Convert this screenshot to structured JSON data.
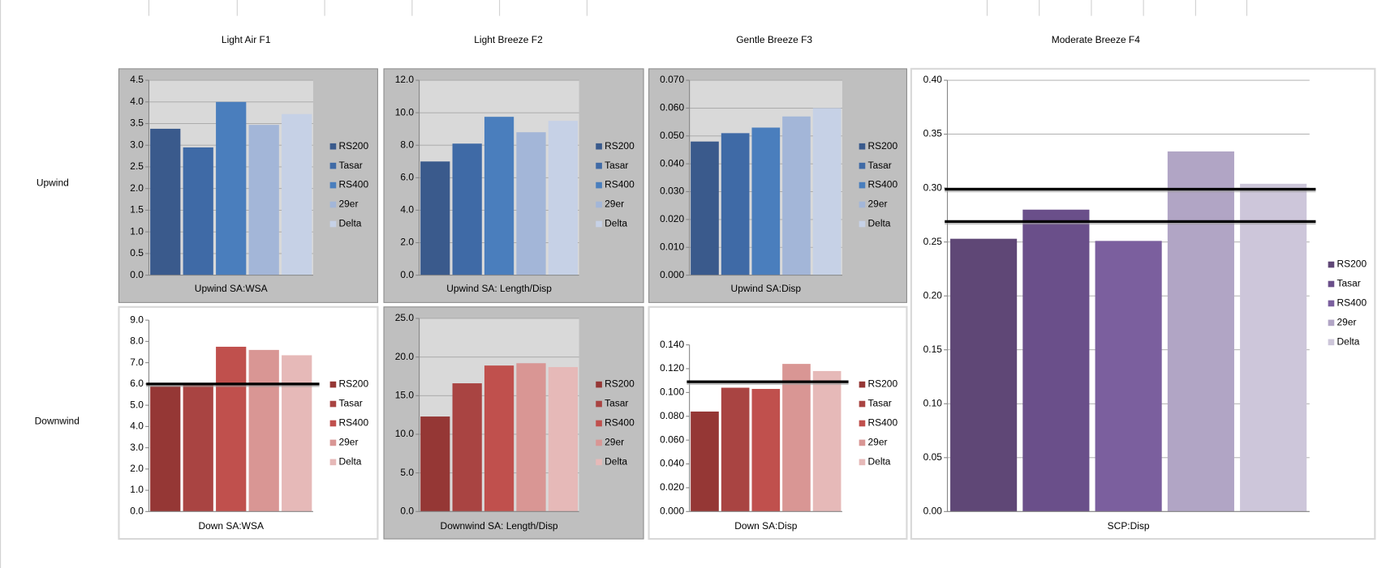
{
  "headers": [
    "Light Air F1",
    "Light Breeze F2",
    "Gentle Breeze F3",
    "Moderate Breeze F4"
  ],
  "rows": [
    "Upwind",
    "Downwind"
  ],
  "chart_data": [
    {
      "type": "bar",
      "x_label": "Upwind SA:WSA",
      "grid": true,
      "ylim": [
        0,
        4.5
      ],
      "yticks": [
        {
          "value": 0,
          "label": "0.0"
        },
        0.5,
        {
          "value": 1,
          "label": "1.0"
        },
        1.5,
        {
          "value": 2,
          "label": "2.0"
        },
        2.5,
        {
          "value": 3,
          "label": "3.0"
        },
        3.5,
        {
          "value": 4,
          "label": "4.0"
        },
        4.5
      ],
      "series": [
        {
          "name": "RS200",
          "color": "#3a5a8c",
          "values": [
            3.38
          ]
        },
        {
          "name": "Tasar",
          "color": "#3f6aa6",
          "values": [
            2.95
          ]
        },
        {
          "name": "RS400",
          "color": "#4a7ebd",
          "values": [
            4.0
          ]
        },
        {
          "name": "29er",
          "color": "#a3b6d8",
          "values": [
            3.47
          ]
        },
        {
          "name": "Delta",
          "color": "#c6d1e6",
          "values": [
            3.72
          ]
        }
      ]
    },
    {
      "type": "bar",
      "x_label": "Upwind SA: Length/Disp",
      "grid": true,
      "ylim": [
        0,
        12
      ],
      "yticks": [
        {
          "value": 0,
          "label": "0.0"
        },
        {
          "value": 2,
          "label": "2.0"
        },
        {
          "value": 4,
          "label": "4.0"
        },
        {
          "value": 6,
          "label": "6.0"
        },
        {
          "value": 8,
          "label": "8.0"
        },
        {
          "value": 10,
          "label": "10.0"
        },
        {
          "value": 12,
          "label": "12.0"
        }
      ],
      "series": [
        {
          "name": "RS200",
          "color": "#3a5a8c",
          "values": [
            7.0
          ]
        },
        {
          "name": "Tasar",
          "color": "#3f6aa6",
          "values": [
            8.1
          ]
        },
        {
          "name": "RS400",
          "color": "#4a7ebd",
          "values": [
            9.75
          ]
        },
        {
          "name": "29er",
          "color": "#a3b6d8",
          "values": [
            8.8
          ]
        },
        {
          "name": "Delta",
          "color": "#c6d1e6",
          "values": [
            9.5
          ]
        }
      ]
    },
    {
      "type": "bar",
      "x_label": "Upwind SA:Disp",
      "grid": true,
      "ylim": [
        0,
        0.07
      ],
      "yticks": [
        {
          "value": 0,
          "label": "0.000"
        },
        {
          "value": 0.01,
          "label": "0.010"
        },
        {
          "value": 0.02,
          "label": "0.020"
        },
        {
          "value": 0.03,
          "label": "0.030"
        },
        {
          "value": 0.04,
          "label": "0.040"
        },
        {
          "value": 0.05,
          "label": "0.050"
        },
        {
          "value": 0.06,
          "label": "0.060"
        },
        {
          "value": 0.07,
          "label": "0.070"
        }
      ],
      "series": [
        {
          "name": "RS200",
          "color": "#3a5a8c",
          "values": [
            0.048
          ]
        },
        {
          "name": "Tasar",
          "color": "#3f6aa6",
          "values": [
            0.051
          ]
        },
        {
          "name": "RS400",
          "color": "#4a7ebd",
          "values": [
            0.053
          ]
        },
        {
          "name": "29er",
          "color": "#a3b6d8",
          "values": [
            0.057
          ]
        },
        {
          "name": "Delta",
          "color": "#c6d1e6",
          "values": [
            0.06
          ]
        }
      ]
    },
    {
      "type": "bar",
      "x_label": "Down SA:WSA",
      "grid": false,
      "ylim": [
        0,
        9
      ],
      "reference_lines": [
        6
      ],
      "yticks": [
        {
          "value": 0,
          "label": "0.0"
        },
        {
          "value": 1,
          "label": "1.0"
        },
        {
          "value": 2,
          "label": "2.0"
        },
        {
          "value": 3,
          "label": "3.0"
        },
        {
          "value": 4,
          "label": "4.0"
        },
        {
          "value": 5,
          "label": "5.0"
        },
        {
          "value": 6,
          "label": "6.0"
        },
        {
          "value": 7,
          "label": "7.0"
        },
        {
          "value": 8,
          "label": "8.0"
        },
        {
          "value": 9,
          "label": "9.0"
        }
      ],
      "series": [
        {
          "name": "RS200",
          "color": "#953735",
          "values": [
            5.9
          ]
        },
        {
          "name": "Tasar",
          "color": "#a94442",
          "values": [
            6.0
          ]
        },
        {
          "name": "RS400",
          "color": "#c0504d",
          "values": [
            7.75
          ]
        },
        {
          "name": "29er",
          "color": "#d99694",
          "values": [
            7.6
          ]
        },
        {
          "name": "Delta",
          "color": "#e6b9b8",
          "values": [
            7.35
          ]
        }
      ]
    },
    {
      "type": "bar",
      "x_label": "Downwind SA: Length/Disp",
      "grid": true,
      "ylim": [
        0,
        25
      ],
      "yticks": [
        {
          "value": 0,
          "label": "0.0"
        },
        {
          "value": 5,
          "label": "5.0"
        },
        {
          "value": 10,
          "label": "10.0"
        },
        {
          "value": 15,
          "label": "15.0"
        },
        {
          "value": 20,
          "label": "20.0"
        },
        {
          "value": 25,
          "label": "25.0"
        }
      ],
      "series": [
        {
          "name": "RS200",
          "color": "#953735",
          "values": [
            12.3
          ]
        },
        {
          "name": "Tasar",
          "color": "#a94442",
          "values": [
            16.6
          ]
        },
        {
          "name": "RS400",
          "color": "#c0504d",
          "values": [
            18.9
          ]
        },
        {
          "name": "29er",
          "color": "#d99694",
          "values": [
            19.2
          ]
        },
        {
          "name": "Delta",
          "color": "#e6b9b8",
          "values": [
            18.7
          ]
        }
      ]
    },
    {
      "type": "bar",
      "x_label": "Down SA:Disp",
      "grid": false,
      "ylim": [
        0,
        0.14
      ],
      "reference_lines": [
        0.109
      ],
      "yticks": [
        {
          "value": 0,
          "label": "0.000"
        },
        {
          "value": 0.02,
          "label": "0.020"
        },
        {
          "value": 0.04,
          "label": "0.040"
        },
        {
          "value": 0.06,
          "label": "0.060"
        },
        {
          "value": 0.08,
          "label": "0.080"
        },
        {
          "value": 0.1,
          "label": "0.100"
        },
        {
          "value": 0.12,
          "label": "0.120"
        },
        {
          "value": 0.14,
          "label": "0.140"
        }
      ],
      "series": [
        {
          "name": "RS200",
          "color": "#953735",
          "values": [
            0.084
          ]
        },
        {
          "name": "Tasar",
          "color": "#a94442",
          "values": [
            0.104
          ]
        },
        {
          "name": "RS400",
          "color": "#c0504d",
          "values": [
            0.103
          ]
        },
        {
          "name": "29er",
          "color": "#d99694",
          "values": [
            0.124
          ]
        },
        {
          "name": "Delta",
          "color": "#e6b9b8",
          "values": [
            0.118
          ]
        }
      ]
    },
    {
      "type": "bar",
      "x_label": "SCP:Disp",
      "grid": true,
      "ylim": [
        0,
        0.4
      ],
      "reference_lines": [
        0.299,
        0.269
      ],
      "yticks": [
        {
          "value": 0,
          "label": "0.00"
        },
        0.05,
        {
          "value": 0.1,
          "label": "0.10"
        },
        0.15,
        {
          "value": 0.2,
          "label": "0.20"
        },
        0.25,
        {
          "value": 0.3,
          "label": "0.30"
        },
        0.35,
        {
          "value": 0.4,
          "label": "0.40"
        }
      ],
      "series": [
        {
          "name": "RS200",
          "color": "#5f4776",
          "values": [
            0.253
          ]
        },
        {
          "name": "Tasar",
          "color": "#6a4f8a",
          "values": [
            0.28
          ]
        },
        {
          "name": "RS400",
          "color": "#7b5f9e",
          "values": [
            0.251
          ]
        },
        {
          "name": "29er",
          "color": "#b1a5c5",
          "values": [
            0.334
          ]
        },
        {
          "name": "Delta",
          "color": "#cdc6da",
          "values": [
            0.304
          ]
        }
      ]
    }
  ]
}
